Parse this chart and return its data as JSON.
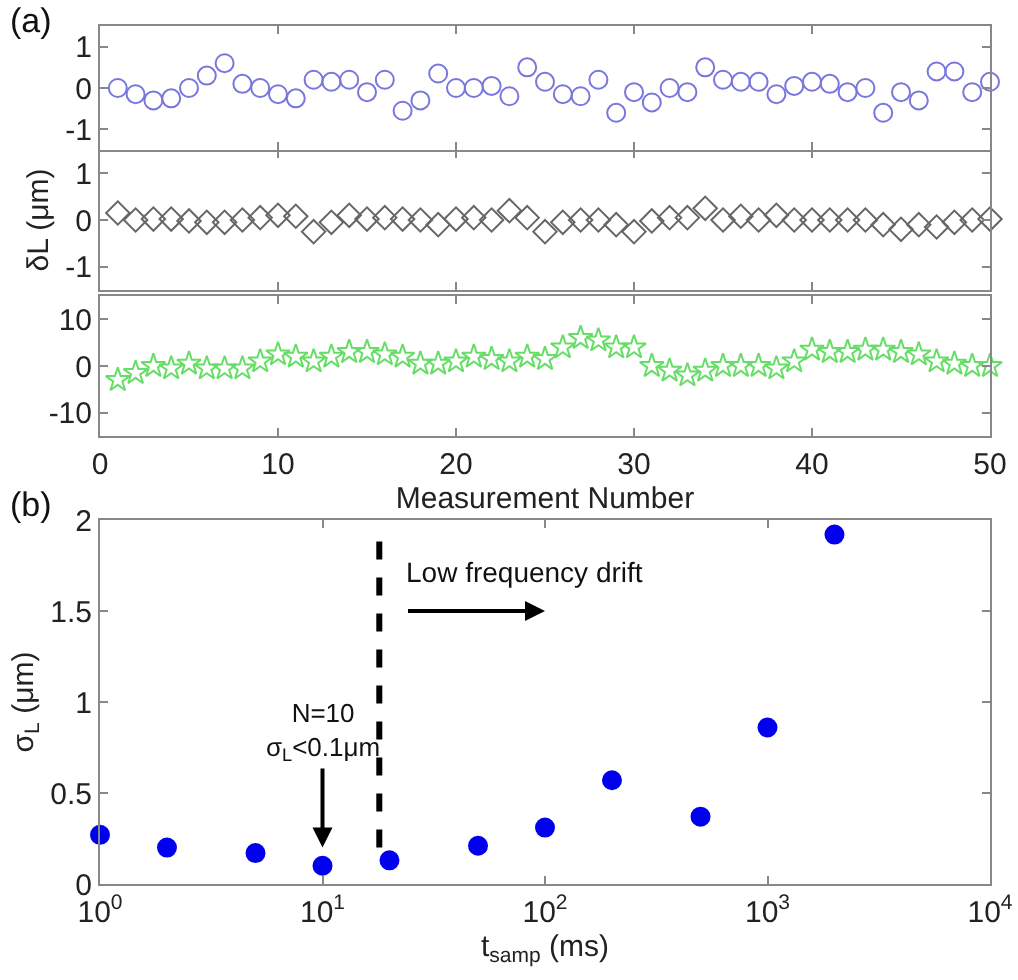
{
  "chart_data": [
    {
      "type": "scatter",
      "annotations": [
        "(a)"
      ],
      "x": [
        1,
        2,
        3,
        4,
        5,
        6,
        7,
        8,
        9,
        10,
        11,
        12,
        13,
        14,
        15,
        16,
        17,
        18,
        19,
        20,
        21,
        22,
        23,
        24,
        25,
        26,
        27,
        28,
        29,
        30,
        31,
        32,
        33,
        34,
        35,
        36,
        37,
        38,
        39,
        40,
        41,
        42,
        43,
        44,
        45,
        46,
        47,
        48,
        49,
        50
      ],
      "series": [
        {
          "color": "#7777dd",
          "values": [
            0,
            -0.15,
            -0.3,
            -0.25,
            0,
            0.3,
            0.6,
            0.1,
            0,
            -0.15,
            -0.25,
            0.2,
            0.15,
            0.2,
            -0.1,
            0.2,
            -0.55,
            -0.3,
            0.35,
            0,
            0,
            0.05,
            -0.2,
            0.5,
            0.15,
            -0.15,
            -0.2,
            0.2,
            -0.6,
            -0.1,
            -0.35,
            0,
            -0.1,
            0.5,
            0.2,
            0.15,
            0.15,
            -0.15,
            0.05,
            0.15,
            0.1,
            -0.1,
            0,
            -0.6,
            -0.1,
            -0.3,
            0.4,
            0.4,
            -0.1,
            0.15
          ]
        }
      ],
      "marker": "circle",
      "xlim": [
        0,
        50
      ],
      "xticks": [
        0,
        10,
        20,
        30,
        40,
        50
      ],
      "ylim": [
        -1.5,
        1.5
      ],
      "yticks": [
        -1,
        0,
        1
      ],
      "tick_labels": "y"
    },
    {
      "type": "scatter",
      "ylabel": "δL (μm)",
      "x": [
        1,
        2,
        3,
        4,
        5,
        6,
        7,
        8,
        9,
        10,
        11,
        12,
        13,
        14,
        15,
        16,
        17,
        18,
        19,
        20,
        21,
        22,
        23,
        24,
        25,
        26,
        27,
        28,
        29,
        30,
        31,
        32,
        33,
        34,
        35,
        36,
        37,
        38,
        39,
        40,
        41,
        42,
        43,
        44,
        45,
        46,
        47,
        48,
        49,
        50
      ],
      "series": [
        {
          "color": "#666666",
          "values": [
            0.15,
            0,
            0.02,
            0.02,
            -0.02,
            -0.05,
            -0.05,
            0,
            0.05,
            0.1,
            0.08,
            -0.25,
            -0.05,
            0.1,
            0.02,
            0.05,
            0.02,
            0,
            -0.1,
            0.02,
            0.05,
            0,
            0.2,
            0.05,
            -0.25,
            -0.05,
            0,
            0,
            -0.1,
            -0.25,
            -0.02,
            0.05,
            0.05,
            0.25,
            0,
            0.08,
            0,
            0.1,
            0,
            0,
            0,
            0,
            0,
            -0.1,
            -0.2,
            -0.1,
            -0.15,
            -0.05,
            0,
            0.02
          ]
        }
      ],
      "marker": "diamond",
      "xlim": [
        0,
        50
      ],
      "xticks": [
        0,
        10,
        20,
        30,
        40,
        50
      ],
      "ylim": [
        -1.5,
        1.5
      ],
      "yticks": [
        -1,
        0,
        1
      ],
      "tick_labels": "y"
    },
    {
      "type": "scatter",
      "xlabel": "Measurement Number",
      "x": [
        1,
        2,
        3,
        4,
        5,
        6,
        7,
        8,
        9,
        10,
        11,
        12,
        13,
        14,
        15,
        16,
        17,
        18,
        19,
        20,
        21,
        22,
        23,
        24,
        25,
        26,
        27,
        28,
        29,
        30,
        31,
        32,
        33,
        34,
        35,
        36,
        37,
        38,
        39,
        40,
        41,
        42,
        43,
        44,
        45,
        46,
        47,
        48,
        49,
        50
      ],
      "series": [
        {
          "color": "#66dd66",
          "values": [
            -3,
            -1.5,
            0,
            -0.5,
            0.5,
            -0.5,
            -0.5,
            -0.5,
            1,
            2.5,
            2,
            1,
            2,
            3,
            3,
            2.5,
            2,
            0.5,
            0.5,
            1,
            2,
            1.5,
            1,
            2,
            1.5,
            4,
            6,
            5.5,
            4,
            4,
            0,
            -1,
            -2,
            -1,
            0,
            0,
            0,
            -0.5,
            1,
            3.5,
            3,
            3,
            3.5,
            3.5,
            3,
            2.5,
            1,
            0.5,
            0,
            0
          ]
        }
      ],
      "marker": "star",
      "xlim": [
        0,
        50
      ],
      "xticks": [
        0,
        10,
        20,
        30,
        40,
        50
      ],
      "ylim": [
        -15,
        15
      ],
      "yticks": [
        -10,
        0,
        10
      ]
    },
    {
      "type": "scatter",
      "xlabel": "t$_{samp}$ (ms)",
      "ylabel": "σ$_{L}$ (μm)",
      "annotations": [
        "(b)",
        {
          "text": "N=10\nσ$_{L}$<0.1μm",
          "x": 10,
          "y": 0.2
        },
        "Low frequency drift"
      ],
      "x": [
        1,
        2,
        5,
        10,
        20,
        50,
        100,
        200,
        500,
        1000,
        2000
      ],
      "series": [
        {
          "color": "#0000ee",
          "values": [
            0.27,
            0.2,
            0.17,
            0.1,
            0.13,
            0.21,
            0.31,
            0.57,
            0.37,
            0.86,
            1.92
          ]
        }
      ],
      "marker": "circle",
      "log": "x",
      "xlim": [
        1,
        10000
      ],
      "xticks": [
        {
          "value": 1,
          "label": "10$^{0}$"
        },
        {
          "value": 10,
          "label": "10$^{1}$"
        },
        {
          "value": 100,
          "label": "10$^{2}$"
        },
        {
          "value": 1000,
          "label": "10$^{3}$"
        },
        {
          "value": 10000,
          "label": "10$^{4}$"
        }
      ],
      "ylim": [
        0,
        2
      ],
      "yticks": [
        0,
        0.5,
        1,
        1.5,
        2
      ],
      "ref_lines": [
        {
          "axis": "x",
          "value": 18,
          "color": "#000000",
          "line_style": "dashed"
        }
      ]
    }
  ]
}
